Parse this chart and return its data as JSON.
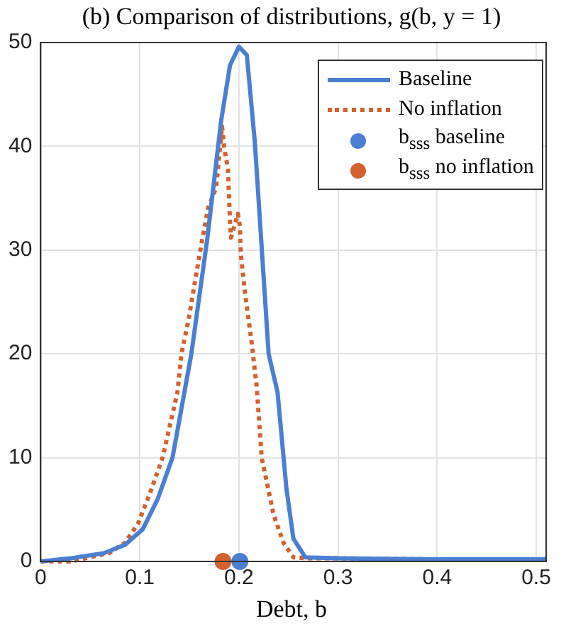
{
  "chart_data": {
    "type": "line",
    "title": "(b) Comparison of distributions, g(b, y = 1)",
    "xlabel": "Debt, b",
    "xlim": [
      0,
      0.51
    ],
    "xticks": [
      0,
      0.1,
      0.2,
      0.3,
      0.4,
      0.5
    ],
    "ylim": [
      0,
      50
    ],
    "yticks": [
      0,
      10,
      20,
      30,
      40,
      50
    ],
    "grid": true,
    "legend": "top right",
    "series": [
      {
        "name": "Baseline",
        "color": "#4a7fd1",
        "line_style": "solid",
        "marker": "none",
        "x": [
          0,
          0.03,
          0.064,
          0.085,
          0.103,
          0.118,
          0.133,
          0.145,
          0.152,
          0.168,
          0.182,
          0.191,
          0.2,
          0.208,
          0.216,
          0.23,
          0.239,
          0.248,
          0.255,
          0.267,
          0.3,
          0.4,
          0.51
        ],
        "values": [
          0,
          0.3,
          0.8,
          1.6,
          3.1,
          6,
          10,
          16.3,
          20,
          31,
          42.4,
          47.8,
          49.6,
          48.8,
          40.5,
          20,
          16.3,
          7,
          2.2,
          0.4,
          0.3,
          0.2,
          0.2
        ]
      },
      {
        "name": "No inflation",
        "color": "#d2622f",
        "line_style": "dotted",
        "marker": "none",
        "x": [
          0,
          0.03,
          0.069,
          0.085,
          0.098,
          0.11,
          0.123,
          0.138,
          0.142,
          0.149,
          0.162,
          0.169,
          0.177,
          0.183,
          0.185,
          0.189,
          0.191,
          0.192,
          0.199,
          0.201,
          0.202,
          0.206,
          0.213,
          0.218,
          0.223,
          0.235,
          0.245,
          0.255,
          0.27,
          0.3,
          0.4,
          0.51
        ],
        "values": [
          0,
          0,
          0.8,
          1.8,
          3.6,
          6.5,
          10,
          16.3,
          20,
          23.2,
          30.5,
          34.1,
          36,
          41.9,
          40,
          37.8,
          32.8,
          31.2,
          33.5,
          32.3,
          29.6,
          26,
          21,
          16.8,
          10,
          4.5,
          1.8,
          0.4,
          0.3,
          0.3,
          0.2,
          0.2
        ]
      },
      {
        "name": "b$_{sss}$ baseline",
        "type": "scatter",
        "color": "#4a7fd1",
        "marker": "circle",
        "x": [
          0.201
        ],
        "values": [
          0
        ]
      },
      {
        "name": "b$_{sss}$ no inflation",
        "type": "scatter",
        "color": "#d2622f",
        "marker": "circle",
        "x": [
          0.184
        ],
        "values": [
          0
        ]
      }
    ]
  }
}
